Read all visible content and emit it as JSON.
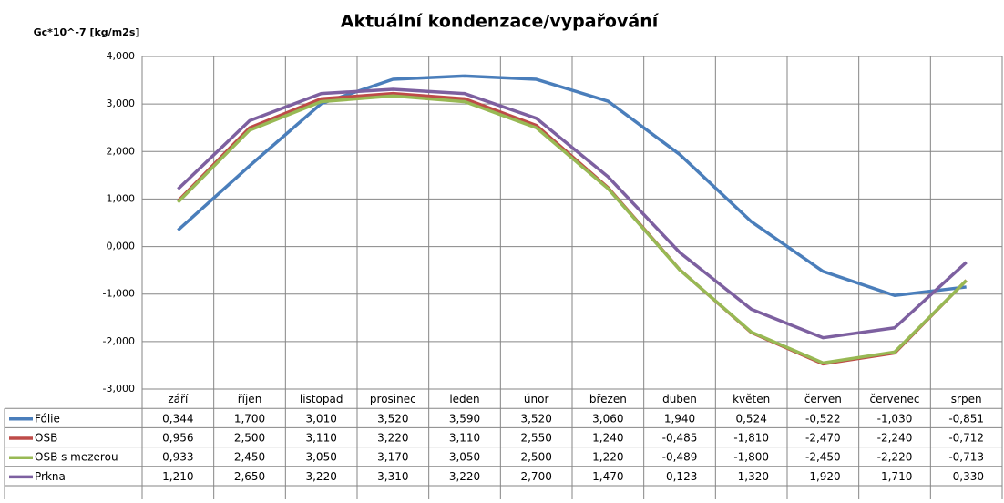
{
  "chart_data": {
    "type": "line",
    "title": "Aktuální kondenzace/vypařování",
    "y_label": "Gc*10^-7 [kg/m2s]",
    "categories": [
      "září",
      "říjen",
      "listopad",
      "prosinec",
      "leden",
      "únor",
      "březen",
      "duben",
      "květen",
      "červen",
      "červenec",
      "srpen"
    ],
    "series": [
      {
        "name": "Fólie",
        "color": "#4a7ebb",
        "values": [
          0.344,
          1.7,
          3.01,
          3.52,
          3.59,
          3.52,
          3.06,
          1.94,
          0.524,
          -0.522,
          -1.03,
          -0.851
        ],
        "value_labels": [
          "0,344",
          "1,700",
          "3,010",
          "3,520",
          "3,590",
          "3,520",
          "3,060",
          "1,940",
          "0,524",
          "-0,522",
          "-1,030",
          "-0,851"
        ]
      },
      {
        "name": "OSB",
        "color": "#be4b48",
        "values": [
          0.956,
          2.5,
          3.11,
          3.22,
          3.11,
          2.55,
          1.24,
          -0.485,
          -1.81,
          -2.47,
          -2.24,
          -0.712
        ],
        "value_labels": [
          "0,956",
          "2,500",
          "3,110",
          "3,220",
          "3,110",
          "2,550",
          "1,240",
          "-0,485",
          "-1,810",
          "-2,470",
          "-2,240",
          "-0,712"
        ]
      },
      {
        "name": "OSB s mezerou",
        "color": "#98b954",
        "values": [
          0.933,
          2.45,
          3.05,
          3.17,
          3.05,
          2.5,
          1.22,
          -0.489,
          -1.8,
          -2.45,
          -2.22,
          -0.713
        ],
        "value_labels": [
          "0,933",
          "2,450",
          "3,050",
          "3,170",
          "3,050",
          "2,500",
          "1,220",
          "-0,489",
          "-1,800",
          "-2,450",
          "-2,220",
          "-0,713"
        ]
      },
      {
        "name": "Prkna",
        "color": "#7d60a0",
        "values": [
          1.21,
          2.65,
          3.22,
          3.31,
          3.22,
          2.7,
          1.47,
          -0.123,
          -1.32,
          -1.92,
          -1.71,
          -0.33
        ],
        "value_labels": [
          "1,210",
          "2,650",
          "3,220",
          "3,310",
          "3,220",
          "2,700",
          "1,470",
          "-0,123",
          "-1,320",
          "-1,920",
          "-1,710",
          "-0,330"
        ]
      }
    ],
    "ylim": [
      -3,
      4
    ],
    "yticks": [
      {
        "value": -3,
        "label": "-3,000"
      },
      {
        "value": -2,
        "label": "-2,000"
      },
      {
        "value": -1,
        "label": "-1,000"
      },
      {
        "value": 0,
        "label": "0,000"
      },
      {
        "value": 1,
        "label": "1,000"
      },
      {
        "value": 2,
        "label": "2,000"
      },
      {
        "value": 3,
        "label": "3,000"
      },
      {
        "value": 4,
        "label": "4,000"
      }
    ],
    "grid": true
  }
}
